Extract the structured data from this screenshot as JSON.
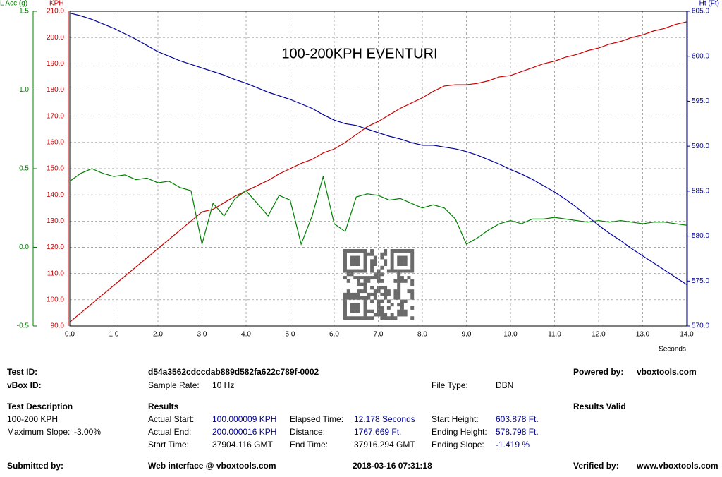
{
  "chart_data": {
    "type": "line",
    "title": "100-200KPH   EVENTURI",
    "x_label": "Seconds",
    "y_label": "KPH",
    "y2_label": "L Acc (g)",
    "y3_label": "Ht (Ft)",
    "x": [
      0,
      0.25,
      0.5,
      0.75,
      1,
      1.25,
      1.5,
      1.75,
      2,
      2.25,
      2.5,
      2.75,
      3,
      3.25,
      3.5,
      3.75,
      4,
      4.25,
      4.5,
      4.75,
      5,
      5.25,
      5.5,
      5.75,
      6,
      6.25,
      6.5,
      6.75,
      7,
      7.25,
      7.5,
      7.75,
      8,
      8.25,
      8.5,
      8.75,
      9,
      9.25,
      9.5,
      9.75,
      10,
      10.25,
      10.5,
      10.75,
      11,
      11.25,
      11.5,
      11.75,
      12,
      12.25,
      12.5,
      12.75,
      13,
      13.25,
      13.5,
      13.75,
      14
    ],
    "series": [
      {
        "name": "KPH",
        "color": "#cc0000",
        "axis": "y",
        "values": [
          91.5,
          95,
          98.5,
          102,
          105.5,
          109,
          112.5,
          116,
          119.5,
          123,
          126.5,
          130,
          133.5,
          134.5,
          137,
          139.5,
          141.5,
          143.5,
          145.5,
          148,
          150,
          152,
          153.5,
          156,
          157.5,
          160,
          163,
          166,
          168,
          170.5,
          173,
          175,
          177,
          179.5,
          181.5,
          182,
          182,
          182.5,
          183.5,
          185,
          185.5,
          187,
          188.5,
          190,
          191,
          192.5,
          193.5,
          195,
          196,
          197.5,
          198.5,
          200,
          201,
          202.5,
          203.5,
          205,
          206
        ]
      },
      {
        "name": "Ht (Ft)",
        "color": "#000099",
        "axis": "y3",
        "values": [
          604.8,
          604.5,
          604.1,
          603.6,
          603.1,
          602.5,
          601.9,
          601.2,
          600.5,
          600,
          599.5,
          599.1,
          598.7,
          598.3,
          597.9,
          597.4,
          597,
          596.5,
          596,
          595.6,
          595.2,
          594.7,
          594.2,
          593.5,
          592.9,
          592.5,
          592.3,
          591.9,
          591.5,
          591.1,
          590.8,
          590.4,
          590.1,
          590.1,
          589.9,
          589.7,
          589.4,
          589,
          588.5,
          588,
          587.4,
          586.9,
          586.3,
          585.6,
          584.9,
          584.1,
          583.2,
          582.2,
          581.2,
          580.3,
          579.5,
          578.6,
          577.8,
          577,
          576.2,
          575.4,
          574.6
        ]
      },
      {
        "name": "L Acc (g)",
        "color": "#008000",
        "axis": "y2",
        "values": [
          0.42,
          0.47,
          0.5,
          0.47,
          0.45,
          0.46,
          0.43,
          0.44,
          0.41,
          0.42,
          0.38,
          0.36,
          0.02,
          0.28,
          0.2,
          0.31,
          0.36,
          0.28,
          0.2,
          0.33,
          0.3,
          0.02,
          0.2,
          0.45,
          0.15,
          0.1,
          0.32,
          0.34,
          0.33,
          0.3,
          0.31,
          0.28,
          0.25,
          0.27,
          0.25,
          0.18,
          0.02,
          0.06,
          0.11,
          0.15,
          0.17,
          0.15,
          0.18,
          0.18,
          0.19,
          0.18,
          0.17,
          0.16,
          0.17,
          0.16,
          0.17,
          0.16,
          0.15,
          0.16,
          0.16,
          0.15,
          0.14
        ]
      }
    ],
    "xlim": [
      0,
      14
    ],
    "xticks": [
      {
        "value": 0,
        "label": "0.0"
      },
      {
        "value": 1,
        "label": "1.0"
      },
      {
        "value": 2,
        "label": "2.0"
      },
      {
        "value": 3,
        "label": "3.0"
      },
      {
        "value": 4,
        "label": "4.0"
      },
      {
        "value": 5,
        "label": "5.0"
      },
      {
        "value": 6,
        "label": "6.0"
      },
      {
        "value": 7,
        "label": "7.0"
      },
      {
        "value": 8,
        "label": "8.0"
      },
      {
        "value": 9,
        "label": "9.0"
      },
      {
        "value": 10,
        "label": "10.0"
      },
      {
        "value": 11,
        "label": "11.0"
      },
      {
        "value": 12,
        "label": "12.0"
      },
      {
        "value": 13,
        "label": "13.0"
      },
      {
        "value": 14,
        "label": "14.0"
      }
    ],
    "ylim": [
      90,
      210
    ],
    "yticks": [
      {
        "value": 90,
        "label": "90.0"
      },
      {
        "value": 100,
        "label": "100.0"
      },
      {
        "value": 110,
        "label": "110.0"
      },
      {
        "value": 120,
        "label": "120.0"
      },
      {
        "value": 130,
        "label": "130.0"
      },
      {
        "value": 140,
        "label": "140.0"
      },
      {
        "value": 150,
        "label": "150.0"
      },
      {
        "value": 160,
        "label": "160.0"
      },
      {
        "value": 170,
        "label": "170.0"
      },
      {
        "value": 180,
        "label": "180.0"
      },
      {
        "value": 190,
        "label": "190.0"
      },
      {
        "value": 200,
        "label": "200.0"
      },
      {
        "value": 210,
        "label": "210.0"
      }
    ],
    "y2lim": [
      -0.5,
      1.5
    ],
    "y2ticks": [
      -0.5,
      {
        "value": 0,
        "label": "0.0"
      },
      0.5,
      {
        "value": 1,
        "label": "1.0"
      },
      1.5
    ],
    "y3lim": [
      570,
      605
    ],
    "y3ticks": [
      {
        "value": 570,
        "label": "570.0"
      },
      {
        "value": 575,
        "label": "575.0"
      },
      {
        "value": 580,
        "label": "580.0"
      },
      {
        "value": 585,
        "label": "585.0"
      },
      {
        "value": 590,
        "label": "590.0"
      },
      {
        "value": 595,
        "label": "595.0"
      },
      {
        "value": 600,
        "label": "600.0"
      },
      {
        "value": 605,
        "label": "605.0"
      }
    ],
    "grid": true
  },
  "report": {
    "test_id_label": "Test ID:",
    "test_id": "d54a3562cdccdab889d582fa622c789f-0002",
    "powered_by_label": "Powered by:",
    "powered_by": "vboxtools.com",
    "vbox_id_label": "vBox ID:",
    "sample_rate_label": "Sample Rate:",
    "sample_rate": "10 Hz",
    "file_type_label": "File Type:",
    "file_type": "DBN",
    "test_description_label": "Test Description",
    "results_label": "Results",
    "results_valid": "Results Valid",
    "test_description": "100-200 KPH",
    "max_slope_label": "Maximum Slope:",
    "max_slope": "-3.00%",
    "actual_start_label": "Actual Start:",
    "actual_start": "100.000009 KPH",
    "elapsed_time_label": "Elapsed Time:",
    "elapsed_time": "12.178 Seconds",
    "start_height_label": "Start Height:",
    "start_height": "603.878 Ft.",
    "actual_end_label": "Actual End:",
    "actual_end": "200.000016 KPH",
    "distance_label": "Distance:",
    "distance": "1767.669 Ft.",
    "ending_height_label": "Ending Height:",
    "ending_height": "578.798 Ft.",
    "start_time_label": "Start Time:",
    "start_time": "37904.116 GMT",
    "end_time_label": "End Time:",
    "end_time": "37916.294 GMT",
    "ending_slope_label": "Ending Slope:",
    "ending_slope": "-1.419 %",
    "submitted_by_label": "Submitted by:",
    "web_interface": "Web interface @ vboxtools.com",
    "timestamp": "2018-03-16 07:31:18",
    "verified_by_label": "Verified by:",
    "verified_by": "www.vboxtools.com"
  }
}
